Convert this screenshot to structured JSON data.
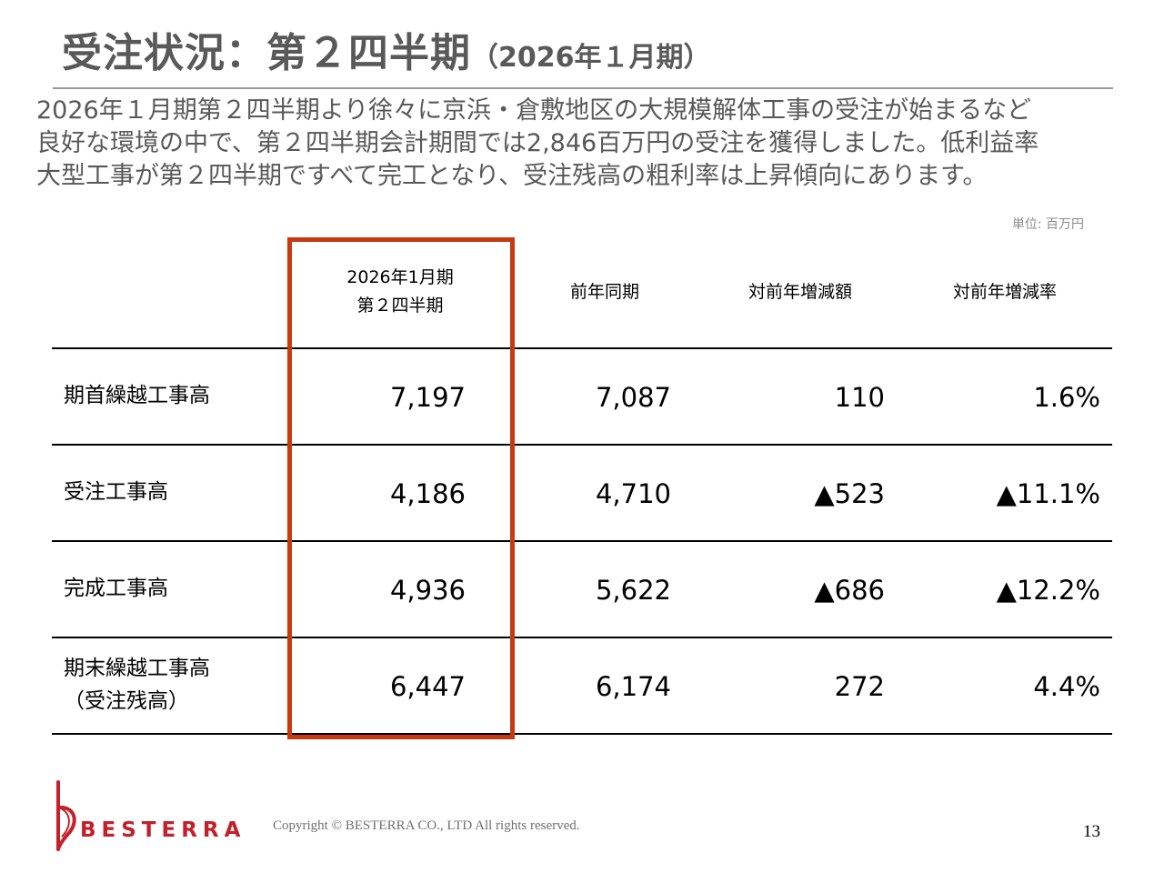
{
  "slide": {
    "title": "受注状況：第２四半期",
    "title_sub": "（2026年１月期）",
    "intro_lines": [
      "2026年１月期第２四半期より徐々に京浜・倉敷地区の大規模解体工事の受注が始まるなど",
      "良好な環境の中で、第２四半期会計期間では2,846百万円の受注を獲得しました。低利益率",
      "大型工事が第２四半期ですべて完工となり、受注残高の粗利率は上昇傾向にあります。"
    ],
    "unit": "単位: 百万円"
  },
  "table": {
    "headers": {
      "current_line1": "2026年1月期",
      "current_line2": "第２四半期",
      "prior": "前年同期",
      "yoy_amount": "対前年増減額",
      "yoy_rate": "対前年増減率"
    },
    "rows": [
      {
        "label": "期首繰越工事高",
        "label2": "",
        "current": "7,197",
        "prior": "7,087",
        "diff": "110",
        "rate": "1.6%"
      },
      {
        "label": "受注工事高",
        "label2": "",
        "current": "4,186",
        "prior": "4,710",
        "diff": "▲523",
        "rate": "▲11.1%"
      },
      {
        "label": "完成工事高",
        "label2": "",
        "current": "4,936",
        "prior": "5,622",
        "diff": "▲686",
        "rate": "▲12.2%"
      },
      {
        "label": "期末繰越工事高",
        "label2": "（受注残高）",
        "current": "6,447",
        "prior": "6,174",
        "diff": "272",
        "rate": "4.4%"
      }
    ]
  },
  "footer": {
    "logo_text": "BESTERRA",
    "copyright": "Copyright © BESTERRA CO., LTD All rights reserved.",
    "page_number": "13"
  },
  "colors": {
    "accent": "#c63a12",
    "brand": "#c4202b",
    "title_gray": "#595959"
  }
}
